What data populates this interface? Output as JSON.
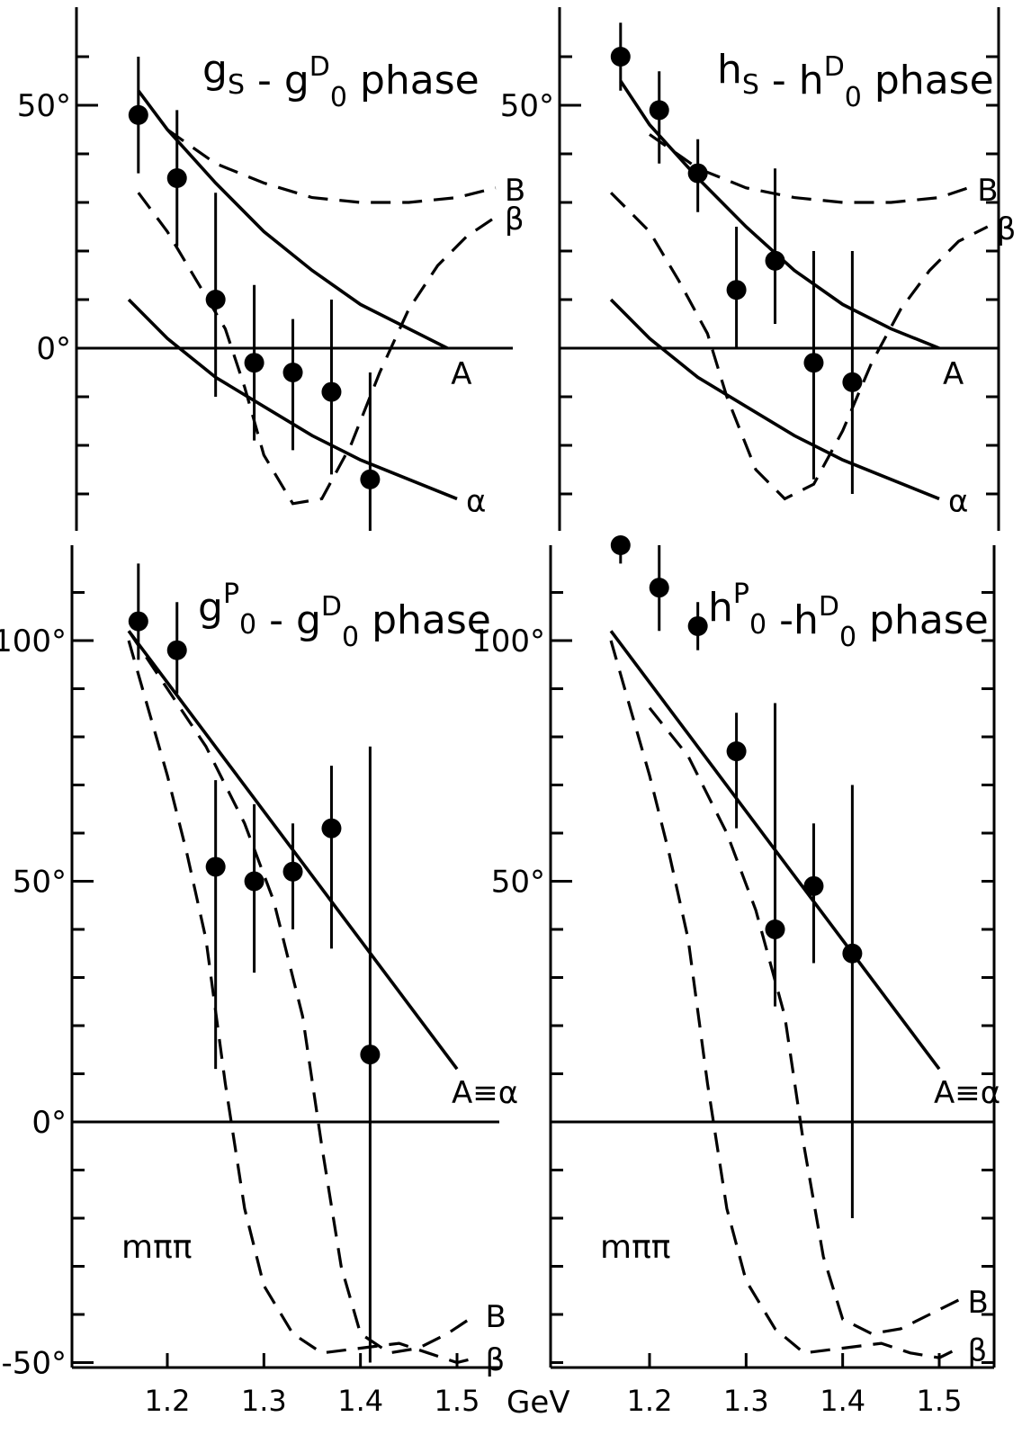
{
  "chart_data": [
    {
      "type": "line",
      "title": "gS - g0D phase",
      "title_main": "g",
      "title_sub1": "S",
      "title_mid": "- g",
      "title_sup2": "D",
      "title_sub2": "0",
      "title_tail": "phase",
      "xlabel": "",
      "ylabel": "",
      "xlim": [
        1.1,
        1.56
      ],
      "ylim": [
        -35,
        60
      ],
      "y_ticks": [
        {
          "v": 50,
          "label": "50°"
        },
        {
          "v": 0,
          "label": "0°"
        }
      ],
      "x_ticks": [],
      "points": [
        {
          "x": 1.17,
          "y": 48,
          "lo": 36,
          "hi": 60
        },
        {
          "x": 1.21,
          "y": 35,
          "lo": 21,
          "hi": 49
        },
        {
          "x": 1.25,
          "y": 10,
          "lo": -10,
          "hi": 32
        },
        {
          "x": 1.29,
          "y": -3,
          "lo": -19,
          "hi": 13
        },
        {
          "x": 1.33,
          "y": -5,
          "lo": -21,
          "hi": 6
        },
        {
          "x": 1.37,
          "y": -9,
          "lo": -26,
          "hi": 10
        },
        {
          "x": 1.41,
          "y": -27,
          "lo": -41,
          "hi": -5
        }
      ],
      "curves": [
        {
          "label": "A",
          "style": "solid",
          "pts": [
            [
              1.17,
              53
            ],
            [
              1.2,
              45
            ],
            [
              1.25,
              34
            ],
            [
              1.3,
              24
            ],
            [
              1.35,
              16
            ],
            [
              1.4,
              9
            ],
            [
              1.45,
              4
            ],
            [
              1.49,
              0
            ]
          ]
        },
        {
          "label": "α",
          "style": "solid",
          "pts": [
            [
              1.16,
              10
            ],
            [
              1.2,
              2
            ],
            [
              1.25,
              -6
            ],
            [
              1.3,
              -12
            ],
            [
              1.35,
              -18
            ],
            [
              1.4,
              -23
            ],
            [
              1.45,
              -27
            ],
            [
              1.5,
              -31
            ]
          ]
        },
        {
          "label": "B",
          "style": "dashed",
          "pts": [
            [
              1.2,
              45
            ],
            [
              1.25,
              38
            ],
            [
              1.3,
              34
            ],
            [
              1.35,
              31
            ],
            [
              1.4,
              30
            ],
            [
              1.45,
              30
            ],
            [
              1.5,
              31
            ],
            [
              1.54,
              33
            ]
          ]
        },
        {
          "label": "β",
          "style": "dashed",
          "pts": [
            [
              1.17,
              32
            ],
            [
              1.2,
              24
            ],
            [
              1.23,
              14
            ],
            [
              1.26,
              4
            ],
            [
              1.28,
              -8
            ],
            [
              1.3,
              -22
            ],
            [
              1.33,
              -32
            ],
            [
              1.36,
              -31
            ],
            [
              1.39,
              -20
            ],
            [
              1.42,
              -5
            ],
            [
              1.45,
              8
            ],
            [
              1.48,
              17
            ],
            [
              1.51,
              23
            ],
            [
              1.54,
              27
            ]
          ]
        }
      ]
    },
    {
      "type": "line",
      "title": "hS - h0D phase",
      "title_main": "h",
      "title_sub1": "S",
      "title_mid": "- h",
      "title_sup2": "D",
      "title_sub2": "0",
      "title_tail": "phase",
      "xlabel": "",
      "ylabel": "",
      "xlim": [
        1.1,
        1.56
      ],
      "ylim": [
        -35,
        60
      ],
      "y_ticks": [
        {
          "v": 50,
          "label": "50°"
        }
      ],
      "x_ticks": [],
      "points": [
        {
          "x": 1.17,
          "y": 60,
          "lo": 53,
          "hi": 67
        },
        {
          "x": 1.21,
          "y": 49,
          "lo": 38,
          "hi": 57
        },
        {
          "x": 1.25,
          "y": 36,
          "lo": 28,
          "hi": 43
        },
        {
          "x": 1.29,
          "y": 12,
          "lo": 0,
          "hi": 25
        },
        {
          "x": 1.33,
          "y": 18,
          "lo": 5,
          "hi": 37
        },
        {
          "x": 1.37,
          "y": -3,
          "lo": -27,
          "hi": 20
        },
        {
          "x": 1.41,
          "y": -7,
          "lo": -30,
          "hi": 20
        }
      ],
      "curves": [
        {
          "label": "A",
          "style": "solid",
          "pts": [
            [
              1.17,
              55
            ],
            [
              1.2,
              46
            ],
            [
              1.25,
              35
            ],
            [
              1.3,
              25
            ],
            [
              1.35,
              16
            ],
            [
              1.4,
              9
            ],
            [
              1.45,
              4
            ],
            [
              1.5,
              0
            ]
          ]
        },
        {
          "label": "α",
          "style": "solid",
          "pts": [
            [
              1.16,
              10
            ],
            [
              1.2,
              2
            ],
            [
              1.25,
              -6
            ],
            [
              1.3,
              -12
            ],
            [
              1.35,
              -18
            ],
            [
              1.4,
              -23
            ],
            [
              1.45,
              -27
            ],
            [
              1.5,
              -31
            ]
          ]
        },
        {
          "label": "B",
          "style": "dashed",
          "pts": [
            [
              1.2,
              44
            ],
            [
              1.25,
              37
            ],
            [
              1.3,
              33
            ],
            [
              1.35,
              31
            ],
            [
              1.4,
              30
            ],
            [
              1.45,
              30
            ],
            [
              1.5,
              31
            ],
            [
              1.53,
              33
            ]
          ]
        },
        {
          "label": "β",
          "style": "dashed",
          "pts": [
            [
              1.16,
              32
            ],
            [
              1.2,
              24
            ],
            [
              1.23,
              14
            ],
            [
              1.26,
              3
            ],
            [
              1.28,
              -10
            ],
            [
              1.31,
              -25
            ],
            [
              1.34,
              -31
            ],
            [
              1.37,
              -28
            ],
            [
              1.4,
              -17
            ],
            [
              1.43,
              -3
            ],
            [
              1.46,
              8
            ],
            [
              1.49,
              16
            ],
            [
              1.52,
              22
            ],
            [
              1.55,
              25
            ]
          ]
        }
      ]
    },
    {
      "type": "line",
      "title": "g0P - g0D phase",
      "title_main": "g",
      "title_sup1": "P",
      "title_sub1": "0",
      "title_mid": "- g",
      "title_sup2": "D",
      "title_sub2": "0",
      "title_tail": "phase",
      "xlabel": "mππ",
      "ylabel": "",
      "xlim": [
        1.1,
        1.56
      ],
      "ylim": [
        -52,
        118
      ],
      "y_ticks": [
        {
          "v": 100,
          "label": "100°"
        },
        {
          "v": 50,
          "label": "50°"
        },
        {
          "v": 0,
          "label": "0°"
        },
        {
          "v": -50,
          "label": "-50°"
        }
      ],
      "x_ticks": [
        {
          "v": 1.2,
          "label": "1.2"
        },
        {
          "v": 1.3,
          "label": "1.3"
        },
        {
          "v": 1.4,
          "label": "1.4"
        },
        {
          "v": 1.5,
          "label": "1.5"
        }
      ],
      "x_unit": "GeV",
      "points": [
        {
          "x": 1.17,
          "y": 104,
          "lo": 96,
          "hi": 116
        },
        {
          "x": 1.21,
          "y": 98,
          "lo": 89,
          "hi": 108
        },
        {
          "x": 1.25,
          "y": 53,
          "lo": 11,
          "hi": 71
        },
        {
          "x": 1.29,
          "y": 50,
          "lo": 31,
          "hi": 66
        },
        {
          "x": 1.33,
          "y": 52,
          "lo": 40,
          "hi": 62
        },
        {
          "x": 1.37,
          "y": 61,
          "lo": 36,
          "hi": 74
        },
        {
          "x": 1.41,
          "y": 14,
          "lo": -50,
          "hi": 78
        }
      ],
      "curves": [
        {
          "label": "A≡α",
          "style": "solid",
          "pts": [
            [
              1.16,
              102
            ],
            [
              1.5,
              11
            ]
          ]
        },
        {
          "label": "B",
          "style": "dashed",
          "pts": [
            [
              1.16,
              102
            ],
            [
              1.2,
              90
            ],
            [
              1.24,
              78
            ],
            [
              1.28,
              62
            ],
            [
              1.31,
              46
            ],
            [
              1.34,
              22
            ],
            [
              1.36,
              -5
            ],
            [
              1.38,
              -30
            ],
            [
              1.4,
              -44
            ],
            [
              1.43,
              -48
            ],
            [
              1.46,
              -47
            ],
            [
              1.49,
              -44
            ],
            [
              1.52,
              -40
            ]
          ]
        },
        {
          "label": "β",
          "style": "dashed",
          "pts": [
            [
              1.16,
              100
            ],
            [
              1.18,
              86
            ],
            [
              1.2,
              72
            ],
            [
              1.22,
              56
            ],
            [
              1.24,
              38
            ],
            [
              1.26,
              8
            ],
            [
              1.28,
              -18
            ],
            [
              1.3,
              -34
            ],
            [
              1.33,
              -44
            ],
            [
              1.36,
              -48
            ],
            [
              1.4,
              -47
            ],
            [
              1.44,
              -46
            ],
            [
              1.47,
              -48
            ],
            [
              1.5,
              -50
            ],
            [
              1.52,
              -49
            ]
          ]
        }
      ]
    },
    {
      "type": "line",
      "title": "h0P - h0D phase",
      "title_main": "h",
      "title_sup1": "P",
      "title_sub1": "0",
      "title_mid": "-h",
      "title_sup2": "D",
      "title_sub2": "0",
      "title_tail": "phase",
      "xlabel": "mππ",
      "ylabel": "",
      "xlim": [
        1.1,
        1.56
      ],
      "ylim": [
        -52,
        118
      ],
      "y_ticks": [
        {
          "v": 100,
          "label": "100°"
        },
        {
          "v": 50,
          "label": "50°"
        }
      ],
      "x_ticks": [
        {
          "v": 1.2,
          "label": "1.2"
        },
        {
          "v": 1.3,
          "label": "1.3"
        },
        {
          "v": 1.4,
          "label": "1.4"
        },
        {
          "v": 1.5,
          "label": "1.5"
        }
      ],
      "points": [
        {
          "x": 1.17,
          "y": 121,
          "lo": 116,
          "hi": 127
        },
        {
          "x": 1.21,
          "y": 111,
          "lo": 102,
          "hi": 120
        },
        {
          "x": 1.25,
          "y": 103,
          "lo": 98,
          "hi": 108
        },
        {
          "x": 1.29,
          "y": 77,
          "lo": 61,
          "hi": 85
        },
        {
          "x": 1.33,
          "y": 40,
          "lo": 24,
          "hi": 87
        },
        {
          "x": 1.37,
          "y": 49,
          "lo": 33,
          "hi": 62
        },
        {
          "x": 1.41,
          "y": 35,
          "lo": -20,
          "hi": 70
        }
      ],
      "curves": [
        {
          "label": "A≡α",
          "style": "solid",
          "pts": [
            [
              1.16,
              102
            ],
            [
              1.5,
              11
            ]
          ]
        },
        {
          "label": "B",
          "style": "dashed",
          "pts": [
            [
              1.2,
              86
            ],
            [
              1.24,
              76
            ],
            [
              1.28,
              60
            ],
            [
              1.31,
              44
            ],
            [
              1.34,
              22
            ],
            [
              1.36,
              -5
            ],
            [
              1.38,
              -28
            ],
            [
              1.4,
              -41
            ],
            [
              1.43,
              -44
            ],
            [
              1.46,
              -43
            ],
            [
              1.49,
              -40
            ],
            [
              1.52,
              -37
            ]
          ]
        },
        {
          "label": "β",
          "style": "dashed",
          "pts": [
            [
              1.16,
              100
            ],
            [
              1.18,
              86
            ],
            [
              1.2,
              72
            ],
            [
              1.22,
              56
            ],
            [
              1.24,
              38
            ],
            [
              1.26,
              8
            ],
            [
              1.28,
              -18
            ],
            [
              1.3,
              -33
            ],
            [
              1.33,
              -43
            ],
            [
              1.36,
              -48
            ],
            [
              1.4,
              -47
            ],
            [
              1.44,
              -46
            ],
            [
              1.47,
              -48
            ],
            [
              1.5,
              -49
            ],
            [
              1.52,
              -47
            ]
          ]
        }
      ]
    }
  ]
}
